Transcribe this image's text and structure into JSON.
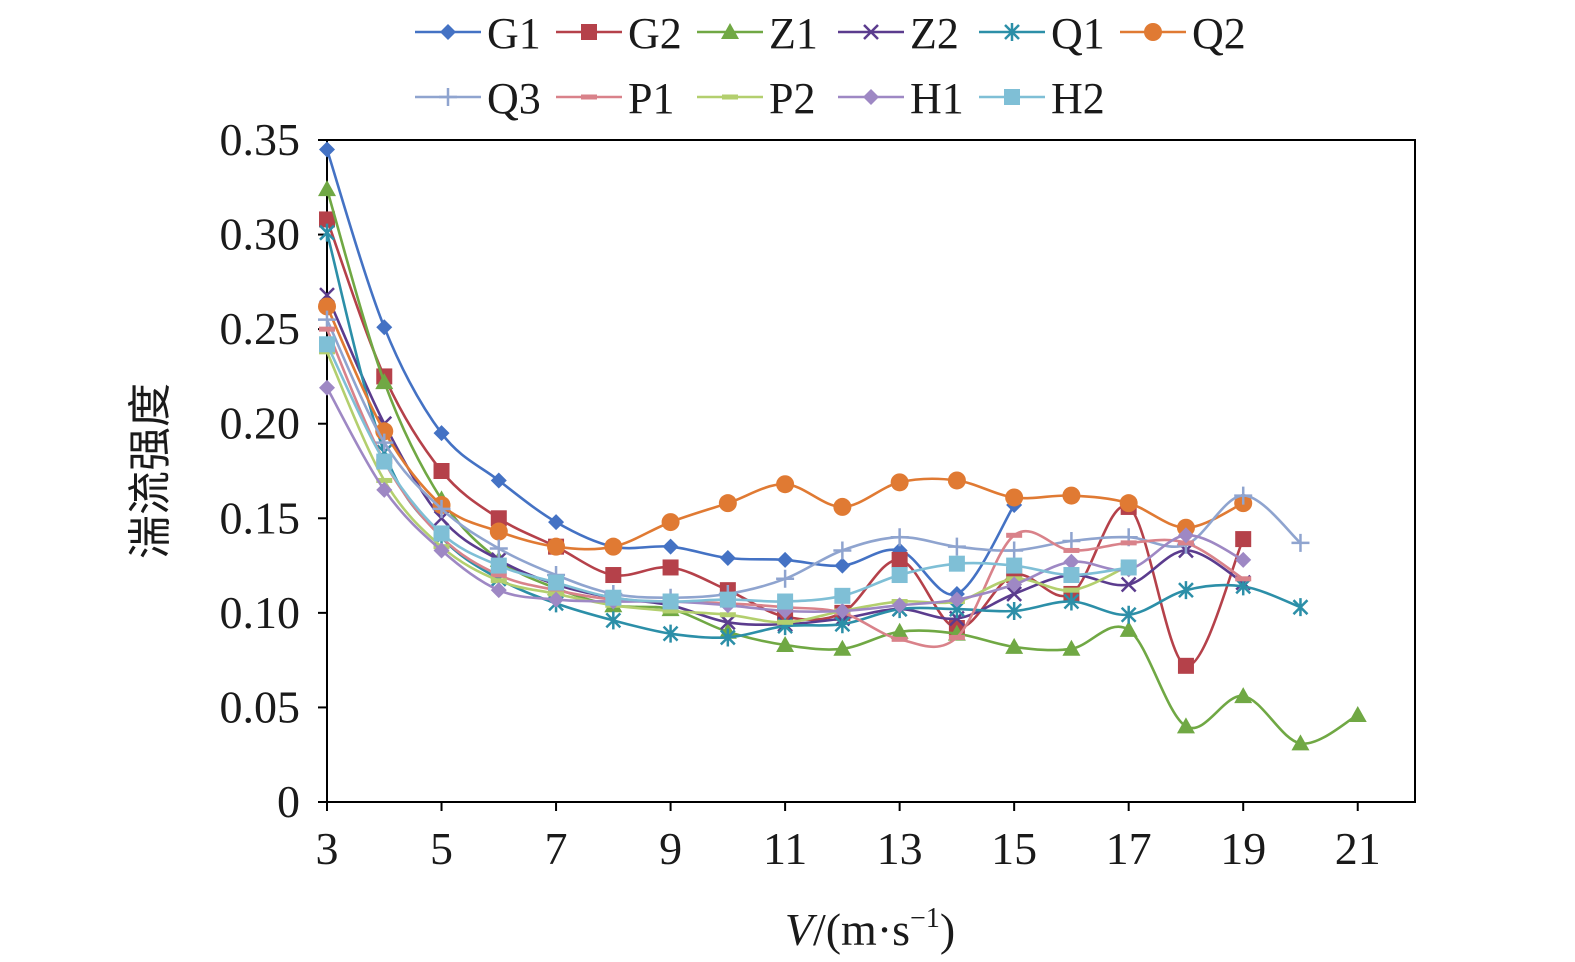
{
  "chart_data": {
    "type": "line",
    "xlabel": {
      "italic": "V",
      "rest": "/(m·s",
      "sup": "−1",
      "close": ")"
    },
    "ylabel": "湍流强度",
    "xlim": [
      3,
      22
    ],
    "ylim": [
      0,
      0.35
    ],
    "xticks": [
      3,
      5,
      7,
      9,
      11,
      13,
      15,
      17,
      19,
      21
    ],
    "xtick_labels": [
      "3",
      "5",
      "7",
      "9",
      "11",
      "13",
      "15",
      "17",
      "19",
      "21"
    ],
    "yticks": [
      0,
      0.05,
      0.1,
      0.15,
      0.2,
      0.25,
      0.3,
      0.35
    ],
    "ytick_labels": [
      "0",
      "0.05",
      "0.10",
      "0.15",
      "0.20",
      "0.25",
      "0.30",
      "0.35"
    ],
    "grid": false,
    "legend_position": "top",
    "series": [
      {
        "name": "G1",
        "color": "#4472c4",
        "marker": "diamond",
        "x": [
          3,
          4,
          5,
          6,
          7,
          8,
          9,
          10,
          11,
          12,
          13,
          14,
          15
        ],
        "values": [
          0.345,
          0.251,
          0.195,
          0.17,
          0.148,
          0.135,
          0.135,
          0.129,
          0.128,
          0.125,
          0.133,
          0.11,
          0.157
        ]
      },
      {
        "name": "G2",
        "color": "#b5414a",
        "marker": "square",
        "x": [
          3,
          4,
          5,
          6,
          7,
          8,
          9,
          10,
          11,
          12,
          13,
          14,
          15,
          16,
          17,
          18,
          19
        ],
        "values": [
          0.308,
          0.225,
          0.175,
          0.15,
          0.135,
          0.12,
          0.124,
          0.112,
          0.098,
          0.1,
          0.128,
          0.092,
          0.12,
          0.11,
          0.156,
          0.072,
          0.139
        ]
      },
      {
        "name": "Z1",
        "color": "#70a844",
        "marker": "triangle",
        "x": [
          3,
          4,
          5,
          6,
          7,
          8,
          9,
          10,
          11,
          12,
          13,
          14,
          15,
          16,
          17,
          18,
          19,
          20,
          21
        ],
        "values": [
          0.324,
          0.222,
          0.16,
          0.128,
          0.113,
          0.104,
          0.102,
          0.09,
          0.083,
          0.081,
          0.09,
          0.089,
          0.082,
          0.081,
          0.091,
          0.04,
          0.056,
          0.031,
          0.046
        ]
      },
      {
        "name": "Z2",
        "color": "#5b3c8e",
        "marker": "x",
        "x": [
          3,
          4,
          5,
          6,
          7,
          8,
          9,
          10,
          11,
          12,
          13,
          14,
          15,
          16,
          17,
          18,
          19
        ],
        "values": [
          0.268,
          0.2,
          0.15,
          0.128,
          0.115,
          0.108,
          0.104,
          0.095,
          0.094,
          0.097,
          0.102,
          0.097,
          0.11,
          0.12,
          0.115,
          0.133,
          0.116
        ]
      },
      {
        "name": "Q1",
        "color": "#2c8fa8",
        "marker": "asterisk",
        "x": [
          3,
          4,
          5,
          6,
          7,
          8,
          9,
          10,
          11,
          12,
          13,
          14,
          15,
          16,
          17,
          18,
          19,
          20
        ],
        "values": [
          0.301,
          0.185,
          0.14,
          0.118,
          0.105,
          0.096,
          0.089,
          0.087,
          0.093,
          0.094,
          0.102,
          0.102,
          0.101,
          0.106,
          0.099,
          0.112,
          0.114,
          0.103
        ]
      },
      {
        "name": "Q2",
        "color": "#e07a33",
        "marker": "circle",
        "x": [
          3,
          4,
          5,
          6,
          7,
          8,
          9,
          10,
          11,
          12,
          13,
          14,
          15,
          16,
          17,
          18,
          19
        ],
        "values": [
          0.262,
          0.196,
          0.157,
          0.143,
          0.135,
          0.135,
          0.148,
          0.158,
          0.168,
          0.156,
          0.169,
          0.17,
          0.161,
          0.162,
          0.158,
          0.145,
          0.158
        ]
      },
      {
        "name": "Q3",
        "color": "#8fa4cf",
        "marker": "plus",
        "x": [
          3,
          4,
          5,
          6,
          7,
          8,
          9,
          10,
          11,
          12,
          13,
          14,
          15,
          16,
          17,
          18,
          19,
          20
        ],
        "values": [
          0.255,
          0.19,
          0.155,
          0.134,
          0.12,
          0.11,
          0.108,
          0.11,
          0.118,
          0.133,
          0.14,
          0.135,
          0.133,
          0.138,
          0.14,
          0.136,
          0.162,
          0.137
        ]
      },
      {
        "name": "P1",
        "color": "#d9828a",
        "marker": "dash",
        "x": [
          3,
          4,
          5,
          6,
          7,
          8,
          9,
          10,
          11,
          12,
          13,
          14,
          15,
          16,
          17,
          18,
          19
        ],
        "values": [
          0.25,
          0.18,
          0.14,
          0.12,
          0.112,
          0.107,
          0.106,
          0.105,
          0.103,
          0.1,
          0.086,
          0.087,
          0.141,
          0.133,
          0.137,
          0.137,
          0.118
        ]
      },
      {
        "name": "P2",
        "color": "#b3cf6e",
        "marker": "dash",
        "x": [
          3,
          4,
          5,
          6,
          7,
          8,
          9,
          10,
          11,
          12,
          13,
          14,
          15,
          16,
          17
        ],
        "values": [
          0.238,
          0.17,
          0.135,
          0.117,
          0.11,
          0.104,
          0.101,
          0.099,
          0.095,
          0.101,
          0.106,
          0.106,
          0.118,
          0.112,
          0.125
        ]
      },
      {
        "name": "H1",
        "color": "#9e88c4",
        "marker": "diamond",
        "x": [
          3,
          4,
          5,
          6,
          7,
          8,
          9,
          10,
          11,
          12,
          13,
          14,
          15,
          16,
          17,
          18,
          19
        ],
        "values": [
          0.219,
          0.165,
          0.133,
          0.112,
          0.107,
          0.106,
          0.106,
          0.104,
          0.101,
          0.101,
          0.104,
          0.107,
          0.115,
          0.127,
          0.123,
          0.141,
          0.128
        ]
      },
      {
        "name": "H2",
        "color": "#7fbfd6",
        "marker": "square",
        "x": [
          3,
          4,
          5,
          6,
          7,
          8,
          9,
          10,
          11,
          12,
          13,
          14,
          15,
          16,
          17
        ],
        "values": [
          0.242,
          0.18,
          0.142,
          0.125,
          0.116,
          0.108,
          0.106,
          0.107,
          0.106,
          0.109,
          0.12,
          0.126,
          0.125,
          0.12,
          0.124
        ]
      }
    ]
  }
}
